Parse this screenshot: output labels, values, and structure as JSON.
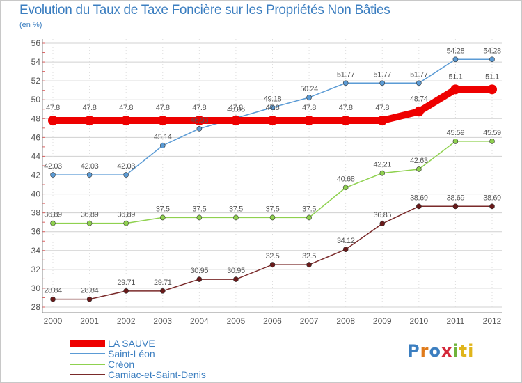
{
  "title": "Evolution du Taux de Taxe Foncière sur les Propriétés Non Bâties",
  "unit": "(en %)",
  "logo_text": "Proxiti",
  "colors": {
    "title": "#3b7ec0",
    "grid": "#d0d0d0",
    "axis": "#888888"
  },
  "chart_data": {
    "type": "line",
    "title": "Evolution du Taux de Taxe Foncière sur les Propriétés Non Bâties",
    "ylabel": "(en %)",
    "xlabel": "",
    "x": [
      "2000",
      "2001",
      "2002",
      "2003",
      "2004",
      "2005",
      "2006",
      "2007",
      "2008",
      "2009",
      "2010",
      "2011",
      "2012"
    ],
    "ylim": [
      28,
      56
    ],
    "yticks": [
      28,
      30,
      32,
      34,
      36,
      38,
      40,
      42,
      44,
      46,
      48,
      50,
      52,
      54,
      56
    ],
    "grid": true,
    "legend_position": "bottom-left",
    "series": [
      {
        "name": "LA SAUVE",
        "color": "#ee0000",
        "values": [
          47.8,
          47.8,
          47.8,
          47.8,
          47.8,
          47.8,
          47.8,
          47.8,
          47.8,
          47.8,
          48.74,
          51.1,
          51.1
        ],
        "labels": [
          "47.8",
          "47.8",
          "47.8",
          "47.8",
          "47.8",
          "47.8",
          "47.8",
          "47.8",
          "47.8",
          "47.8",
          "48.74",
          "51.1",
          "51.1"
        ]
      },
      {
        "name": "Saint-Léon",
        "color": "#5b9bd5",
        "values": [
          42.03,
          42.03,
          42.03,
          45.14,
          46.93,
          48.06,
          49.18,
          50.24,
          51.77,
          51.77,
          51.77,
          54.28,
          54.28
        ],
        "labels": [
          "42.03",
          "42.03",
          "42.03",
          "45.14",
          "46.93",
          "48.06",
          "49.18",
          "50.24",
          "51.77",
          "51.77",
          "51.77",
          "54.28",
          "54.28"
        ]
      },
      {
        "name": "Créon",
        "color": "#8fd14f",
        "values": [
          36.89,
          36.89,
          36.89,
          37.5,
          37.5,
          37.5,
          37.5,
          37.5,
          40.68,
          42.21,
          42.63,
          45.59,
          45.59
        ],
        "labels": [
          "36.89",
          "36.89",
          "36.89",
          "37.5",
          "37.5",
          "37.5",
          "37.5",
          "37.5",
          "40.68",
          "42.21",
          "42.63",
          "45.59",
          "45.59"
        ]
      },
      {
        "name": "Camiac-et-Saint-Denis",
        "color": "#7a2a2a",
        "values": [
          28.84,
          28.84,
          29.71,
          29.71,
          30.95,
          30.95,
          32.5,
          32.5,
          34.12,
          36.85,
          38.69,
          38.69,
          38.69
        ],
        "labels": [
          "28.84",
          "28.84",
          "29.71",
          "29.71",
          "30.95",
          "30.95",
          "32.5",
          "32.5",
          "34.12",
          "36.85",
          "38.69",
          "38.69",
          "38.69"
        ]
      }
    ]
  }
}
